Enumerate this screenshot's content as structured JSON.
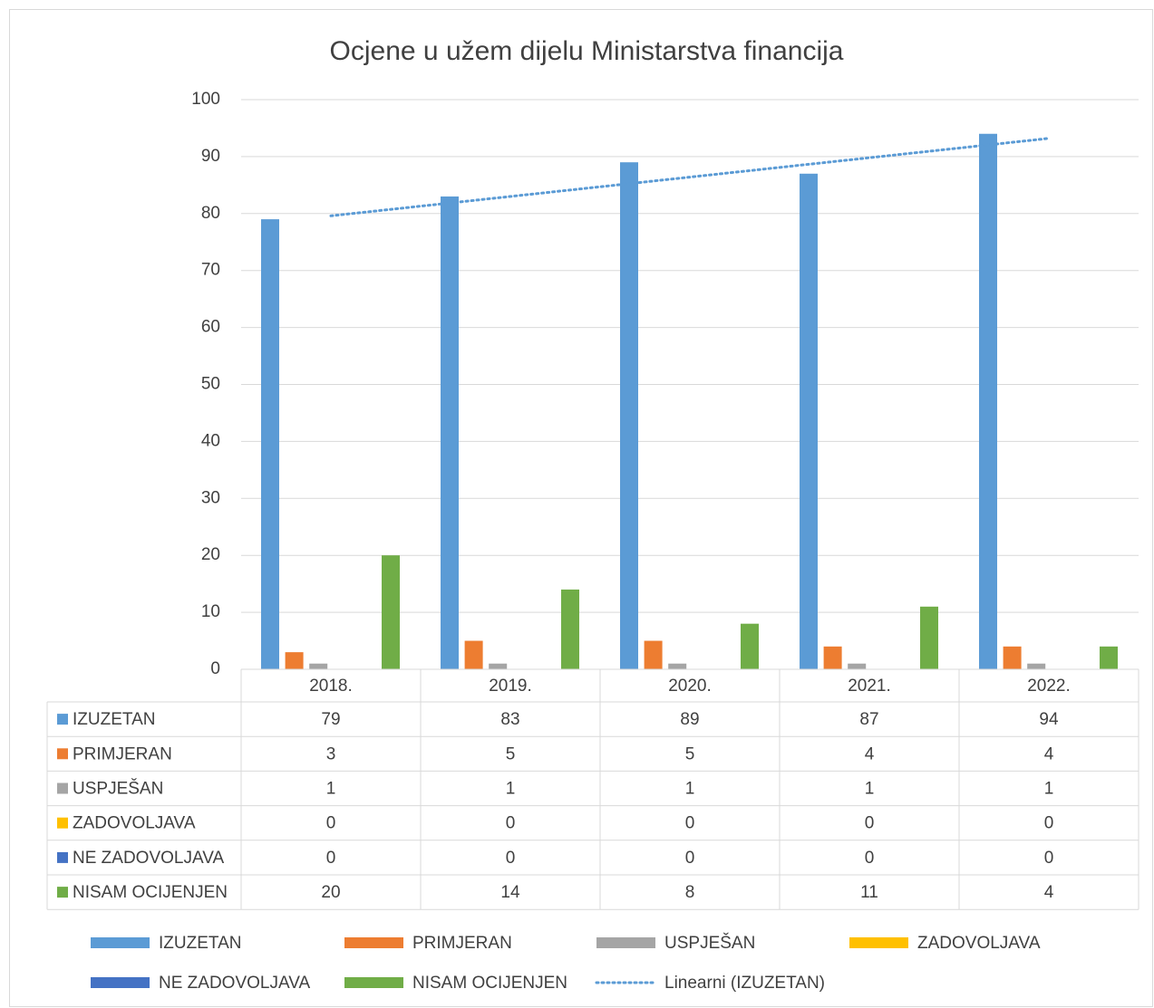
{
  "chart_data": {
    "type": "bar",
    "title": "Ocjene u užem dijelu Ministarstva financija",
    "categories": [
      "2018.",
      "2019.",
      "2020.",
      "2021.",
      "2022."
    ],
    "series": [
      {
        "name": "IZUZETAN",
        "color": "#5b9bd5",
        "values": [
          79,
          83,
          89,
          87,
          94
        ]
      },
      {
        "name": "PRIMJERAN",
        "color": "#ed7d31",
        "values": [
          3,
          5,
          5,
          4,
          4
        ]
      },
      {
        "name": "USPJEŠAN",
        "color": "#a5a5a5",
        "values": [
          1,
          1,
          1,
          1,
          1
        ]
      },
      {
        "name": "ZADOVOLJAVA",
        "color": "#ffc000",
        "values": [
          0,
          0,
          0,
          0,
          0
        ]
      },
      {
        "name": "NE ZADOVOLJAVA",
        "color": "#4472c4",
        "values": [
          0,
          0,
          0,
          0,
          0
        ]
      },
      {
        "name": "NISAM OCIJENJEN",
        "color": "#70ad47",
        "values": [
          20,
          14,
          8,
          11,
          4
        ]
      }
    ],
    "trendline": {
      "name": "Linearni (IZUZETAN)",
      "series": 0,
      "color": "#5b9bd5"
    },
    "ylim": [
      0,
      100
    ],
    "yticks": [
      0,
      10,
      20,
      30,
      40,
      50,
      60,
      70,
      80,
      90,
      100
    ],
    "grid": true,
    "data_table": true
  }
}
